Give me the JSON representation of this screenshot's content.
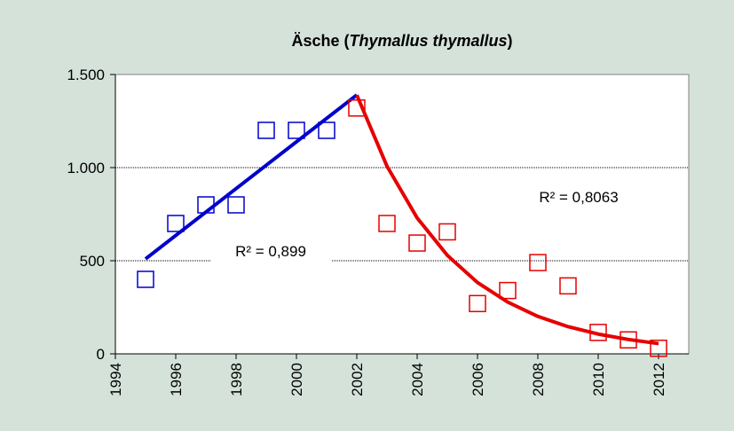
{
  "chart_data": {
    "type": "scatter",
    "title_parts": [
      "Äsche (",
      "Thymallus thymallus",
      ")"
    ],
    "xlim": [
      1994,
      2013
    ],
    "xticks": [
      1994,
      1996,
      1998,
      2000,
      2002,
      2004,
      2006,
      2008,
      2010,
      2012
    ],
    "ylim": [
      0,
      1500
    ],
    "yticks": [
      0,
      500,
      {
        "value": 1000,
        "label": "1.000"
      },
      {
        "value": 1500,
        "label": "1.500"
      }
    ],
    "grid": true,
    "series": [
      {
        "color": "#0000cc",
        "x": [
          1995,
          1996,
          1997,
          1998,
          1999,
          2000,
          2001
        ],
        "values": [
          400,
          700,
          800,
          800,
          1200,
          1200,
          1200
        ]
      },
      {
        "color": "#e60000",
        "x": [
          2002,
          2003,
          2004,
          2005,
          2006,
          2007,
          2008,
          2009,
          2010,
          2011,
          2012
        ],
        "values": [
          1320,
          700,
          595,
          655,
          270,
          340,
          490,
          365,
          115,
          75,
          30
        ]
      }
    ],
    "trendlines": [
      {
        "color": "#0000cc",
        "label": "R² = 0,899",
        "x": [
          1995,
          2002
        ],
        "values": [
          510,
          1390
        ]
      },
      {
        "color": "#e60000",
        "label": "R² = 0,8063",
        "x": [
          2002,
          2003,
          2004,
          2005,
          2006,
          2007,
          2008,
          2009,
          2010,
          2011,
          2012
        ],
        "values": [
          1390,
          1008,
          730,
          529,
          383,
          278,
          201,
          146,
          106,
          77,
          55
        ]
      }
    ]
  }
}
